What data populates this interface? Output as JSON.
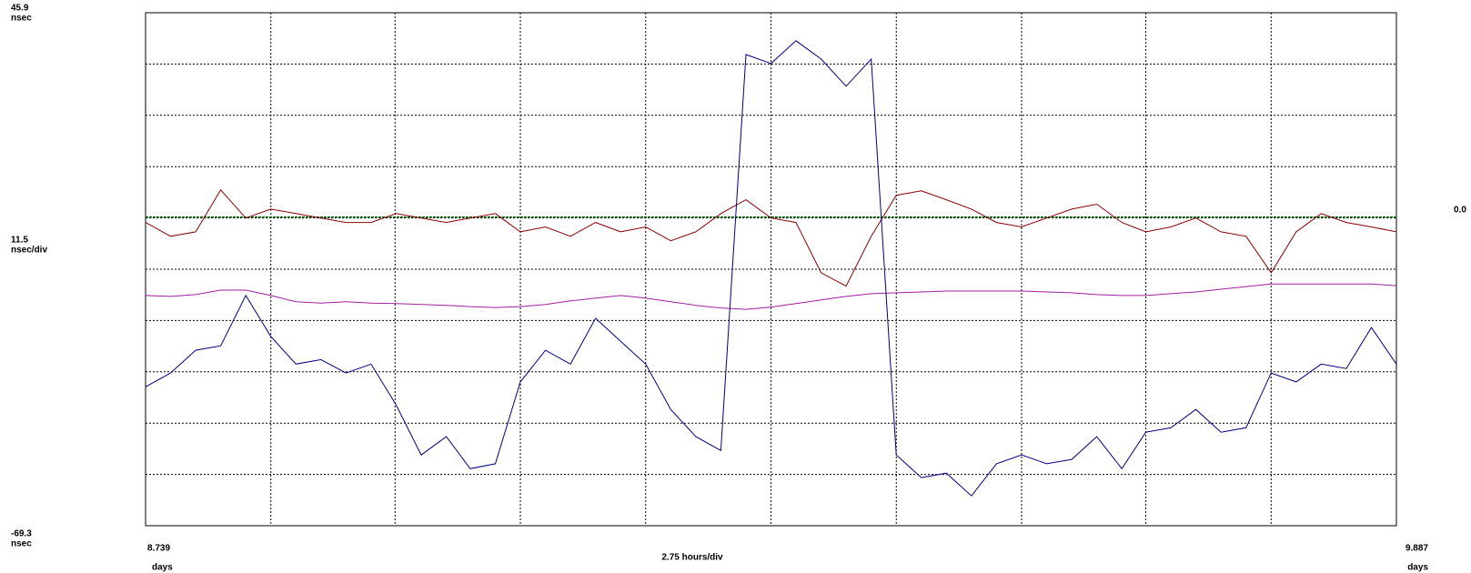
{
  "chart_data": {
    "type": "line",
    "y_unit": "nsec",
    "y_division": "11.5",
    "y_division_unit": "nsec/div",
    "x_unit": "days",
    "x_division": "2.75 hours/div",
    "xlim": [
      8.739,
      9.887
    ],
    "xticks": [
      8.739,
      9.887
    ],
    "ylim": [
      -69.3,
      45.9
    ],
    "yticks": [
      45.9,
      -69.3
    ],
    "xgrid": [
      8.854,
      8.968,
      9.083,
      9.198,
      9.313,
      9.428,
      9.543,
      9.657,
      9.772
    ],
    "ygrid": [
      34.38,
      22.86,
      11.34,
      -0.18,
      -11.7,
      -23.22,
      -34.74,
      -46.26,
      -57.78
    ],
    "grid": true,
    "reference_line": {
      "value": 0,
      "label": "0.0",
      "color": "#006400"
    },
    "x": [
      8.739,
      8.762,
      8.785,
      8.808,
      8.831,
      8.854,
      8.877,
      8.9,
      8.923,
      8.946,
      8.969,
      8.992,
      9.015,
      9.037,
      9.06,
      9.083,
      9.106,
      9.129,
      9.152,
      9.175,
      9.198,
      9.221,
      9.244,
      9.267,
      9.29,
      9.313,
      9.336,
      9.359,
      9.382,
      9.405,
      9.428,
      9.451,
      9.474,
      9.497,
      9.52,
      9.543,
      9.566,
      9.589,
      9.612,
      9.635,
      9.657,
      9.68,
      9.703,
      9.726,
      9.749,
      9.772,
      9.795,
      9.818,
      9.841,
      9.864,
      9.887
    ],
    "series": [
      {
        "color": "#8b0000",
        "values": [
          -1.2,
          -4.3,
          -3.3,
          6.1,
          -0.2,
          1.8,
          0.8,
          -0.2,
          -1.2,
          -1.2,
          0.8,
          -0.2,
          -1.2,
          -0.2,
          0.8,
          -3.3,
          -2.2,
          -4.3,
          -1.2,
          -3.3,
          -2.2,
          -5.3,
          -3.3,
          0.8,
          3.9,
          -0.2,
          -1.2,
          -12.5,
          -15.5,
          -4.3,
          4.9,
          5.9,
          3.9,
          1.8,
          -1.2,
          -2.2,
          -0.2,
          1.8,
          2.9,
          -1.2,
          -3.3,
          -2.2,
          -0.2,
          -3.3,
          -4.3,
          -12.5,
          -3.3,
          0.8,
          -1.2,
          -2.2,
          -3.3
        ]
      },
      {
        "color": "#a020a0",
        "values": [
          -17.6,
          -17.8,
          -17.4,
          -16.4,
          -16.4,
          -17.6,
          -19.0,
          -19.3,
          -19.0,
          -19.3,
          -19.4,
          -19.6,
          -19.8,
          -20.1,
          -20.3,
          -20.1,
          -19.6,
          -18.8,
          -18.2,
          -17.6,
          -18.2,
          -19.0,
          -19.8,
          -20.4,
          -20.7,
          -20.2,
          -19.4,
          -18.6,
          -17.8,
          -17.2,
          -17.0,
          -16.8,
          -16.6,
          -16.6,
          -16.6,
          -16.6,
          -16.8,
          -17.0,
          -17.4,
          -17.6,
          -17.6,
          -17.2,
          -16.8,
          -16.2,
          -15.6,
          -15.0,
          -15.0,
          -15.0,
          -15.0,
          -15.0,
          -15.4
        ]
      },
      {
        "color": "#000080",
        "values": [
          -38.1,
          -35.0,
          -29.9,
          -28.9,
          -17.6,
          -26.8,
          -33.0,
          -32.0,
          -35.0,
          -33.0,
          -42.2,
          -53.4,
          -49.3,
          -56.5,
          -55.4,
          -37.0,
          -29.9,
          -33.0,
          -22.7,
          -27.9,
          -33.0,
          -43.2,
          -49.3,
          -52.4,
          36.5,
          34.5,
          39.6,
          35.5,
          29.4,
          35.5,
          -53.4,
          -58.5,
          -57.5,
          -62.6,
          -55.4,
          -53.4,
          -55.4,
          -54.4,
          -49.3,
          -56.5,
          -48.3,
          -47.3,
          -43.2,
          -48.3,
          -47.3,
          -35.0,
          -37.0,
          -33.0,
          -34.0,
          -24.8,
          -33.0
        ]
      }
    ]
  }
}
